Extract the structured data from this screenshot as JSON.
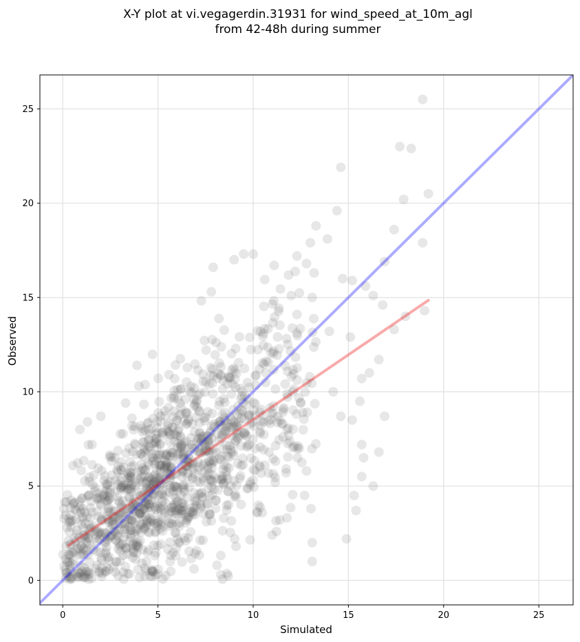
{
  "chart_data": {
    "type": "scatter",
    "title_line1": "X-Y plot at vi.vegagerdin.31931 for wind_speed_at_10m_agl",
    "title_line2": "from 42-48h during summer",
    "xlabel": "Simulated",
    "ylabel": "Observed",
    "xlim": [
      -1.2,
      26.8
    ],
    "ylim": [
      -1.3,
      26.8
    ],
    "xticks": [
      0,
      5,
      10,
      15,
      20,
      25
    ],
    "yticks": [
      0,
      5,
      10,
      15,
      20,
      25
    ],
    "grid": true,
    "legend": "none",
    "point_color": "#555555",
    "point_opacity": 0.14,
    "identity_line": {
      "x": [
        -1.2,
        26.8
      ],
      "y": [
        -1.2,
        26.8
      ],
      "color": "#0000ff"
    },
    "regression_line": {
      "x": [
        0.3,
        19.2
      ],
      "y": [
        1.85,
        14.85
      ],
      "color": "#ee1111"
    },
    "outlier_points": [
      [
        18.9,
        25.5
      ],
      [
        17.7,
        23.0
      ],
      [
        18.3,
        22.9
      ],
      [
        14.6,
        21.9
      ],
      [
        17.9,
        20.2
      ],
      [
        19.2,
        20.5
      ],
      [
        14.4,
        19.6
      ],
      [
        13.3,
        18.8
      ],
      [
        13.9,
        18.1
      ],
      [
        13.0,
        17.9
      ],
      [
        18.9,
        17.9
      ],
      [
        17.4,
        18.6
      ],
      [
        12.8,
        16.8
      ],
      [
        16.9,
        16.9
      ],
      [
        15.9,
        15.6
      ],
      [
        14.7,
        16.0
      ],
      [
        16.3,
        15.1
      ],
      [
        18.0,
        14.0
      ],
      [
        17.4,
        13.3
      ],
      [
        19.0,
        14.3
      ],
      [
        16.8,
        14.6
      ],
      [
        15.2,
        15.9
      ],
      [
        13.2,
        16.3
      ],
      [
        12.3,
        17.2
      ],
      [
        11.1,
        16.7
      ],
      [
        10.0,
        17.3
      ],
      [
        9.0,
        17.0
      ],
      [
        7.9,
        16.6
      ],
      [
        7.8,
        15.3
      ],
      [
        9.5,
        17.3
      ],
      [
        12.0,
        15.1
      ],
      [
        13.1,
        15.0
      ],
      [
        14.0,
        13.2
      ],
      [
        15.1,
        12.9
      ],
      [
        15.7,
        10.7
      ],
      [
        16.1,
        11.0
      ],
      [
        16.6,
        11.7
      ],
      [
        16.9,
        8.7
      ],
      [
        15.6,
        9.5
      ],
      [
        15.2,
        8.5
      ],
      [
        14.6,
        8.7
      ],
      [
        14.2,
        10.0
      ],
      [
        16.6,
        6.8
      ],
      [
        15.7,
        7.2
      ],
      [
        15.8,
        6.5
      ],
      [
        15.7,
        5.5
      ],
      [
        16.3,
        5.0
      ],
      [
        15.3,
        4.5
      ],
      [
        15.4,
        3.7
      ],
      [
        14.9,
        2.2
      ],
      [
        13.1,
        2.0
      ],
      [
        13.1,
        1.0
      ],
      [
        12.8,
        5.8
      ],
      [
        12.7,
        4.5
      ],
      [
        11.4,
        3.2
      ],
      [
        11.0,
        2.4
      ],
      [
        8.1,
        0.8
      ],
      [
        8.3,
        0.3
      ],
      [
        9.1,
        1.8
      ],
      [
        4.7,
        0.2
      ],
      [
        3.3,
        9.4
      ],
      [
        3.9,
        11.4
      ],
      [
        4.0,
        10.3
      ],
      [
        0.9,
        8.0
      ],
      [
        1.3,
        8.4
      ],
      [
        2.0,
        8.7
      ]
    ]
  }
}
